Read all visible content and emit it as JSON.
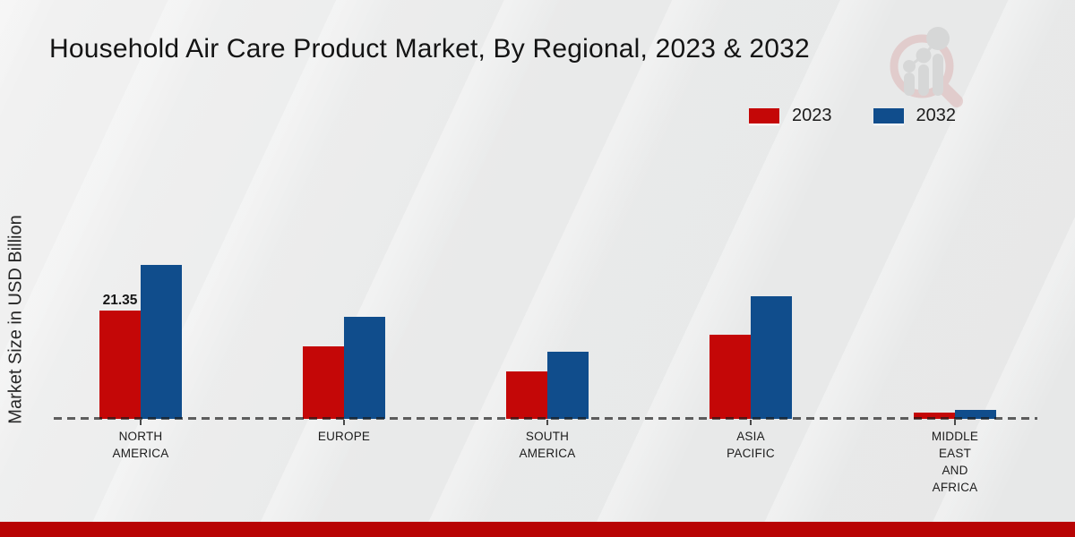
{
  "title": "Household Air Care Product Market, By Regional, 2023 & 2032",
  "watermark_icon": "magnifier-bar-chart-logo-watermark",
  "colors": {
    "series_2023": "#c40707",
    "series_2032": "#104d8c",
    "footer_bar": "#b80404",
    "axis_dash": "#4a4a4a",
    "background": "#e9eaea",
    "watermark_pink": "#dcb6b6",
    "watermark_gray": "#c9c9c9"
  },
  "legend": {
    "items": [
      {
        "label": "2023",
        "color": "#c40707"
      },
      {
        "label": "2032",
        "color": "#104d8c"
      }
    ]
  },
  "chart_data": {
    "type": "bar",
    "title": "Household Air Care Product Market, By Regional, 2023 & 2032",
    "xlabel": "",
    "ylabel": "Market Size in USD Billion",
    "ylim": [
      0,
      32
    ],
    "grid": false,
    "legend_position": "top-right",
    "categories": [
      "NORTH AMERICA",
      "EUROPE",
      "SOUTH AMERICA",
      "ASIA PACIFIC",
      "MIDDLE EAST AND AFRICA"
    ],
    "category_lines": [
      [
        "NORTH",
        "AMERICA"
      ],
      [
        "EUROPE"
      ],
      [
        "SOUTH",
        "AMERICA"
      ],
      [
        "ASIA",
        "PACIFIC"
      ],
      [
        "MIDDLE",
        "EAST",
        "AND",
        "AFRICA"
      ]
    ],
    "series": [
      {
        "name": "2023",
        "color": "#c40707",
        "values": [
          21.35,
          14.3,
          9.35,
          16.6,
          1.2
        ]
      },
      {
        "name": "2032",
        "color": "#104d8c",
        "values": [
          30.4,
          20.1,
          13.2,
          24.2,
          1.8
        ]
      }
    ],
    "data_labels": [
      {
        "series_index": 0,
        "category_index": 0,
        "text": "21.35"
      }
    ]
  }
}
